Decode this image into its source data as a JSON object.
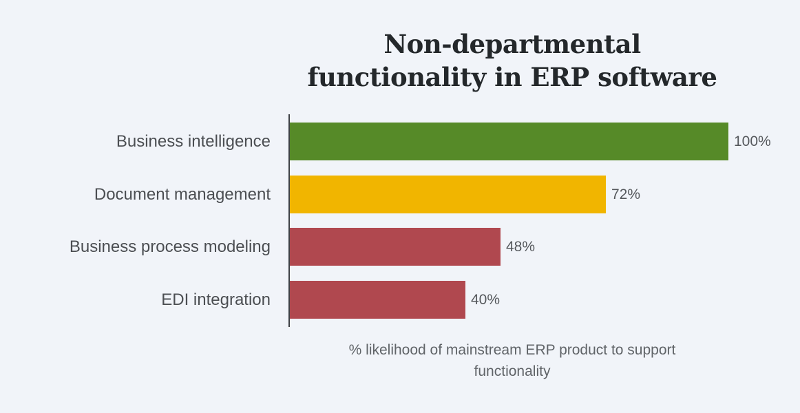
{
  "page": {
    "background_color": "#f1f4f9",
    "accent_colors": {
      "green": "#568a28",
      "yellow": "#f1b500",
      "red": "#b0484f",
      "axis": "#3d4045"
    }
  },
  "chart_data": {
    "type": "bar",
    "orientation": "horizontal",
    "title": "Non-departmental functionality in ERP software",
    "title_lines": [
      "Non-departmental",
      "functionality in ERP software"
    ],
    "xlabel": "% likelihood of mainstream ERP product to support functionality",
    "xlabel_lines": [
      "% likelihood of mainstream ERP product to support",
      "functionality"
    ],
    "ylabel": "",
    "categories": [
      "Business intelligence",
      "Document management",
      "Business process modeling",
      "EDI integration"
    ],
    "values": [
      100,
      72,
      48,
      40
    ],
    "value_labels": [
      "100%",
      "72%",
      "48%",
      "40%"
    ],
    "bar_colors": [
      "#568a28",
      "#f1b500",
      "#b0484f",
      "#b0484f"
    ],
    "xlim": [
      0,
      100
    ],
    "grid": false,
    "legend": null,
    "value_labels_position": "end-of-bar"
  }
}
